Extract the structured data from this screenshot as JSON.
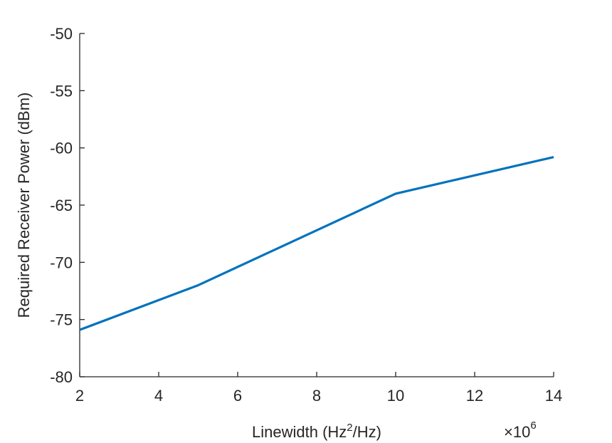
{
  "chart_data": {
    "type": "line",
    "title": "",
    "xlabel": "Linewidth (Hz²/Hz)",
    "xlabel_parts": {
      "before": "Linewidth (Hz",
      "superscript": "2",
      "after": "/Hz)"
    },
    "ylabel": "Required Receiver Power (dBm)",
    "x_exponent_label": {
      "prefix": "×10",
      "exponent": "6"
    },
    "xlim": [
      2,
      14
    ],
    "ylim": [
      -80,
      -50
    ],
    "x_ticks": [
      2,
      4,
      6,
      8,
      10,
      12,
      14
    ],
    "x_tick_labels": [
      "2",
      "4",
      "6",
      "8",
      "10",
      "12",
      "14"
    ],
    "y_ticks": [
      -80,
      -75,
      -70,
      -65,
      -60,
      -55,
      -50
    ],
    "y_tick_labels": [
      "-80",
      "-75",
      "-70",
      "-65",
      "-60",
      "-55",
      "-50"
    ],
    "grid": false,
    "series": [
      {
        "color": "#0072BD",
        "x": [
          2,
          5,
          10,
          14
        ],
        "y": [
          -75.9,
          -72.0,
          -64.0,
          -60.8
        ]
      }
    ]
  }
}
